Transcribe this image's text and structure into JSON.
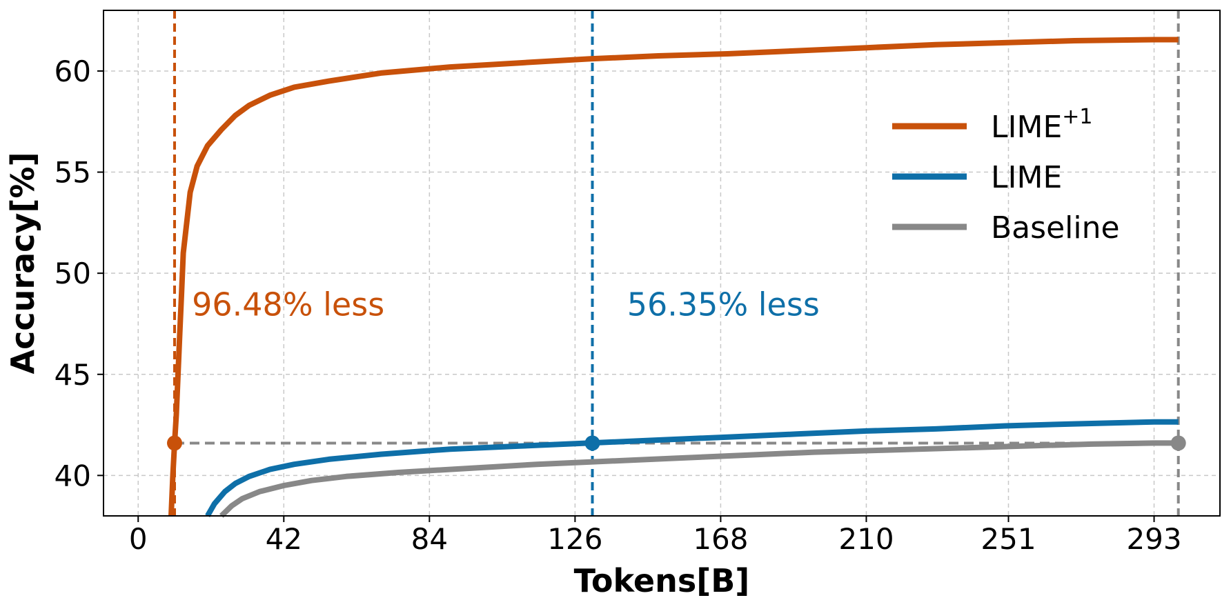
{
  "chart_data": {
    "type": "line",
    "title": "",
    "xlabel": "Tokens[B]",
    "ylabel": "Accuracy[%]",
    "xlim": [
      -10,
      312
    ],
    "ylim": [
      38,
      63
    ],
    "xticks": [
      0,
      42,
      84,
      126,
      168,
      210,
      251,
      293
    ],
    "yticks": [
      40,
      45,
      50,
      55,
      60
    ],
    "grid": true,
    "legend_position": "top-right",
    "series": [
      {
        "name": "LIME",
        "sup": "+1",
        "color": "#c8510a",
        "points": [
          [
            9.5,
            38
          ],
          [
            10,
            40
          ],
          [
            10.5,
            41.6
          ],
          [
            11,
            43
          ],
          [
            11.5,
            45
          ],
          [
            12,
            47
          ],
          [
            12.5,
            49
          ],
          [
            13,
            51
          ],
          [
            14,
            52.5
          ],
          [
            15,
            54
          ],
          [
            17,
            55.3
          ],
          [
            20,
            56.3
          ],
          [
            24,
            57.1
          ],
          [
            28,
            57.8
          ],
          [
            32,
            58.3
          ],
          [
            38,
            58.8
          ],
          [
            45,
            59.2
          ],
          [
            55,
            59.5
          ],
          [
            70,
            59.9
          ],
          [
            90,
            60.2
          ],
          [
            110,
            60.4
          ],
          [
            130,
            60.6
          ],
          [
            150,
            60.75
          ],
          [
            170,
            60.85
          ],
          [
            190,
            61.0
          ],
          [
            210,
            61.15
          ],
          [
            230,
            61.3
          ],
          [
            250,
            61.4
          ],
          [
            270,
            61.5
          ],
          [
            293,
            61.55
          ],
          [
            300,
            61.55
          ]
        ]
      },
      {
        "name": "LIME",
        "color": "#0e6fa8",
        "points": [
          [
            20,
            38
          ],
          [
            22,
            38.6
          ],
          [
            25,
            39.2
          ],
          [
            28,
            39.6
          ],
          [
            32,
            39.95
          ],
          [
            38,
            40.3
          ],
          [
            45,
            40.55
          ],
          [
            55,
            40.8
          ],
          [
            70,
            41.05
          ],
          [
            90,
            41.3
          ],
          [
            110,
            41.45
          ],
          [
            130,
            41.6
          ],
          [
            150,
            41.75
          ],
          [
            170,
            41.9
          ],
          [
            190,
            42.05
          ],
          [
            210,
            42.2
          ],
          [
            230,
            42.3
          ],
          [
            250,
            42.45
          ],
          [
            270,
            42.55
          ],
          [
            293,
            42.65
          ],
          [
            300,
            42.65
          ]
        ]
      },
      {
        "name": "Baseline",
        "color": "#888888",
        "points": [
          [
            24,
            38
          ],
          [
            27,
            38.5
          ],
          [
            30,
            38.85
          ],
          [
            35,
            39.2
          ],
          [
            42,
            39.5
          ],
          [
            50,
            39.75
          ],
          [
            60,
            39.95
          ],
          [
            75,
            40.15
          ],
          [
            95,
            40.35
          ],
          [
            115,
            40.55
          ],
          [
            135,
            40.7
          ],
          [
            155,
            40.85
          ],
          [
            175,
            41.0
          ],
          [
            195,
            41.15
          ],
          [
            215,
            41.25
          ],
          [
            235,
            41.35
          ],
          [
            255,
            41.45
          ],
          [
            275,
            41.55
          ],
          [
            293,
            41.6
          ],
          [
            300,
            41.6
          ]
        ]
      }
    ],
    "reference_lines": {
      "baseline_level": 41.6,
      "verticals": [
        {
          "x": 10.5,
          "color": "#c8510a"
        },
        {
          "x": 131,
          "color": "#0e6fa8"
        },
        {
          "x": 300,
          "color": "#888888"
        }
      ],
      "markers": [
        {
          "x": 10.5,
          "y": 41.6,
          "color": "#c8510a"
        },
        {
          "x": 131,
          "y": 41.6,
          "color": "#0e6fa8"
        },
        {
          "x": 300,
          "y": 41.6,
          "color": "#888888"
        }
      ]
    },
    "annotations": [
      {
        "text": "96.48% less",
        "x": 15.5,
        "y": 47.9,
        "color": "#c8510a"
      },
      {
        "text": "56.35% less",
        "x": 141,
        "y": 47.9,
        "color": "#0e6fa8"
      }
    ]
  }
}
